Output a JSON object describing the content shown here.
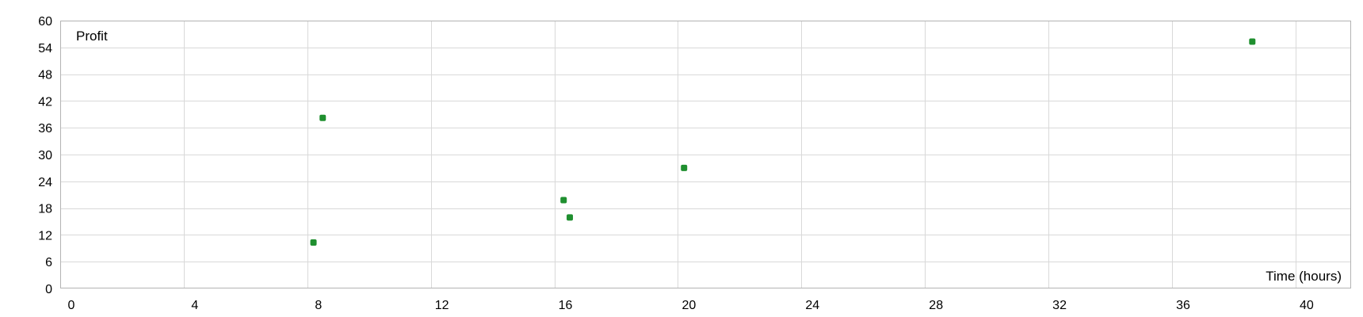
{
  "chart_data": {
    "type": "scatter",
    "title": "",
    "xlabel": "Time (hours)",
    "ylabel": "Profit",
    "xlim": [
      0,
      41.8
    ],
    "ylim": [
      0,
      60
    ],
    "x_ticks": [
      0,
      4,
      8,
      12,
      16,
      20,
      24,
      28,
      32,
      36,
      40
    ],
    "y_ticks": [
      0,
      6,
      12,
      18,
      24,
      30,
      36,
      42,
      48,
      54,
      60
    ],
    "grid": true,
    "legend": "none",
    "marker_color": "#1f8f2f",
    "series": [
      {
        "points": [
          {
            "x": 8.2,
            "y": 10.3
          },
          {
            "x": 8.5,
            "y": 38.2
          },
          {
            "x": 16.3,
            "y": 19.8
          },
          {
            "x": 16.5,
            "y": 15.9
          },
          {
            "x": 20.2,
            "y": 27.0
          },
          {
            "x": 38.6,
            "y": 55.3
          }
        ]
      }
    ]
  }
}
